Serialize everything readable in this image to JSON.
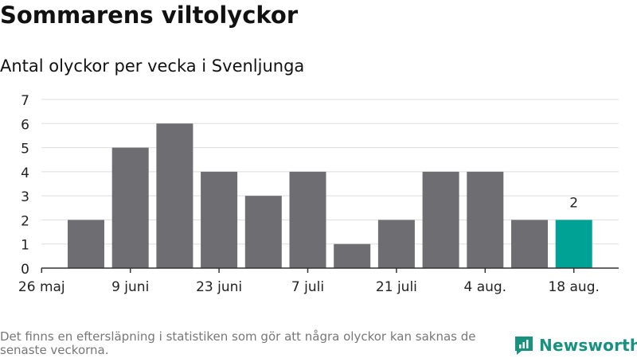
{
  "title": "Sommarens viltolyckor",
  "subtitle": "Antal olyckor per vecka i Svenljunga",
  "footnote": "Det finns en eftersläpning i statistiken som gör att några olyckor kan saknas de senaste veckorna.",
  "brand": "Newsworthy",
  "colors": {
    "bar": "#6e6d72",
    "highlight": "#00a296",
    "grid": "#dddddd",
    "brand": "#17927f"
  },
  "chart_data": {
    "type": "bar",
    "categories": [
      "2 juni",
      "9 juni",
      "16 juni",
      "23 juni",
      "30 juni",
      "7 juli",
      "14 juli",
      "21 juli",
      "28 juli",
      "4 aug.",
      "11 aug.",
      "18 aug."
    ],
    "values": [
      2,
      5,
      6,
      4,
      3,
      4,
      1,
      2,
      4,
      4,
      2,
      2
    ],
    "x_ticks": [
      "26 maj",
      "9 juni",
      "23 juni",
      "7 juli",
      "21 juli",
      "4 aug.",
      "18 aug."
    ],
    "y_ticks": [
      0,
      1,
      2,
      3,
      4,
      5,
      6,
      7
    ],
    "ylim": [
      0,
      7
    ],
    "highlight_index": 11,
    "data_labels": [
      {
        "index": 11,
        "text": "2"
      }
    ],
    "grid": true
  }
}
